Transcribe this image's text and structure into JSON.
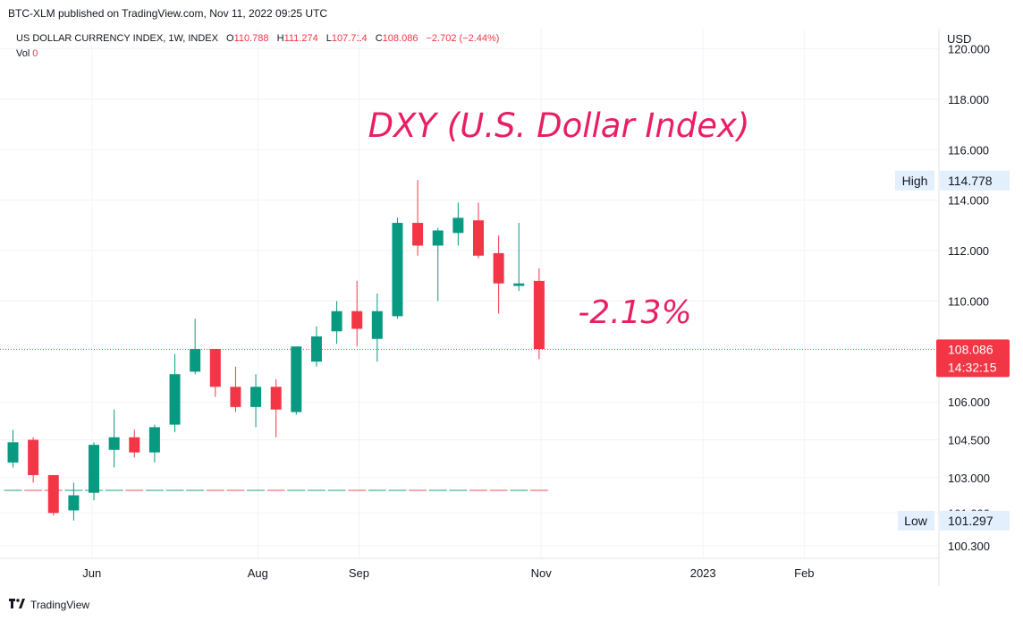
{
  "publisher": "BTC-XLM published on TradingView.com, Nov 11, 2022 09:25 UTC",
  "legend": {
    "symbol": "US DOLLAR CURRENCY INDEX, 1W, INDEX",
    "open_key": "O",
    "open": "110.788",
    "high_key": "H",
    "high": "111.274",
    "low_key": "L",
    "low": "107.714",
    "close_key": "C",
    "close": "108.086",
    "change": "−2.702 (−2.44%)",
    "vol_key": "Vol",
    "vol": "0"
  },
  "currency": "USD",
  "footer": {
    "brand": "TradingView",
    "icon": "tradingview-logo-icon"
  },
  "colors": {
    "up": "#089981",
    "down": "#f23645",
    "annotation": "#e91e63",
    "price_tag": "#f23645"
  },
  "chart_data": {
    "type": "candlestick",
    "title": "DXY (U.S. Dollar Index)",
    "annotation": "-2.13%",
    "ylim": [
      99.8,
      120.8
    ],
    "y_ticks": [
      {
        "value": 120.0,
        "label": "120.000"
      },
      {
        "value": 118.0,
        "label": "118.000"
      },
      {
        "value": 116.0,
        "label": "116.000"
      },
      {
        "value": 114.0,
        "label": "114.000"
      },
      {
        "value": 112.0,
        "label": "112.000"
      },
      {
        "value": 110.0,
        "label": "110.000"
      },
      {
        "value": 106.0,
        "label": "106.000"
      },
      {
        "value": 104.5,
        "label": "104.500"
      },
      {
        "value": 103.0,
        "label": "103.000"
      },
      {
        "value": 101.6,
        "label": "101.600"
      },
      {
        "value": 100.3,
        "label": "100.300"
      }
    ],
    "x_ticks": [
      {
        "index": 3.9,
        "label": "Jun"
      },
      {
        "index": 12.1,
        "label": "Aug"
      },
      {
        "index": 17.1,
        "label": "Sep"
      },
      {
        "index": 26.1,
        "label": "Nov"
      },
      {
        "index": 34.1,
        "label": "2023"
      },
      {
        "index": 39.1,
        "label": "Feb"
      }
    ],
    "candles": [
      {
        "o": 103.6,
        "h": 104.9,
        "l": 103.4,
        "c": 104.4
      },
      {
        "o": 104.5,
        "h": 104.6,
        "l": 102.8,
        "c": 103.1
      },
      {
        "o": 103.1,
        "h": 103.1,
        "l": 101.5,
        "c": 101.6
      },
      {
        "o": 101.7,
        "h": 102.8,
        "l": 101.3,
        "c": 102.3
      },
      {
        "o": 102.4,
        "h": 104.4,
        "l": 102.1,
        "c": 104.3
      },
      {
        "o": 104.1,
        "h": 105.7,
        "l": 103.4,
        "c": 104.6
      },
      {
        "o": 104.6,
        "h": 104.9,
        "l": 103.8,
        "c": 104.0
      },
      {
        "o": 104.0,
        "h": 105.1,
        "l": 103.6,
        "c": 105.0
      },
      {
        "o": 105.1,
        "h": 107.9,
        "l": 104.8,
        "c": 107.1
      },
      {
        "o": 107.2,
        "h": 109.3,
        "l": 107.1,
        "c": 108.1
      },
      {
        "o": 108.1,
        "h": 108.1,
        "l": 106.2,
        "c": 106.6
      },
      {
        "o": 106.6,
        "h": 107.4,
        "l": 105.6,
        "c": 105.8
      },
      {
        "o": 105.8,
        "h": 107.1,
        "l": 105.0,
        "c": 106.6
      },
      {
        "o": 106.6,
        "h": 106.9,
        "l": 104.6,
        "c": 105.7
      },
      {
        "o": 105.6,
        "h": 108.2,
        "l": 105.5,
        "c": 108.2
      },
      {
        "o": 107.6,
        "h": 109.0,
        "l": 107.4,
        "c": 108.6
      },
      {
        "o": 108.8,
        "h": 110.0,
        "l": 108.3,
        "c": 109.6
      },
      {
        "o": 109.6,
        "h": 110.8,
        "l": 108.2,
        "c": 108.9
      },
      {
        "o": 108.5,
        "h": 110.3,
        "l": 107.6,
        "c": 109.6
      },
      {
        "o": 109.4,
        "h": 113.3,
        "l": 109.3,
        "c": 113.1
      },
      {
        "o": 113.1,
        "h": 114.8,
        "l": 111.8,
        "c": 112.2
      },
      {
        "o": 112.2,
        "h": 112.9,
        "l": 110.0,
        "c": 112.8
      },
      {
        "o": 112.7,
        "h": 113.9,
        "l": 112.2,
        "c": 113.3
      },
      {
        "o": 113.2,
        "h": 113.9,
        "l": 111.7,
        "c": 111.8
      },
      {
        "o": 111.9,
        "h": 112.6,
        "l": 109.5,
        "c": 110.7
      },
      {
        "o": 110.6,
        "h": 113.1,
        "l": 110.4,
        "c": 110.7
      },
      {
        "o": 110.8,
        "h": 111.3,
        "l": 107.7,
        "c": 108.1
      }
    ],
    "last_price": {
      "value": 108.086,
      "label": "108.086",
      "countdown": "14:32:15"
    },
    "high_marker": {
      "value": 114.778,
      "label": "High",
      "price": "114.778"
    },
    "low_marker": {
      "value": 101.297,
      "label": "Low",
      "price": "101.297"
    },
    "grid": true
  }
}
